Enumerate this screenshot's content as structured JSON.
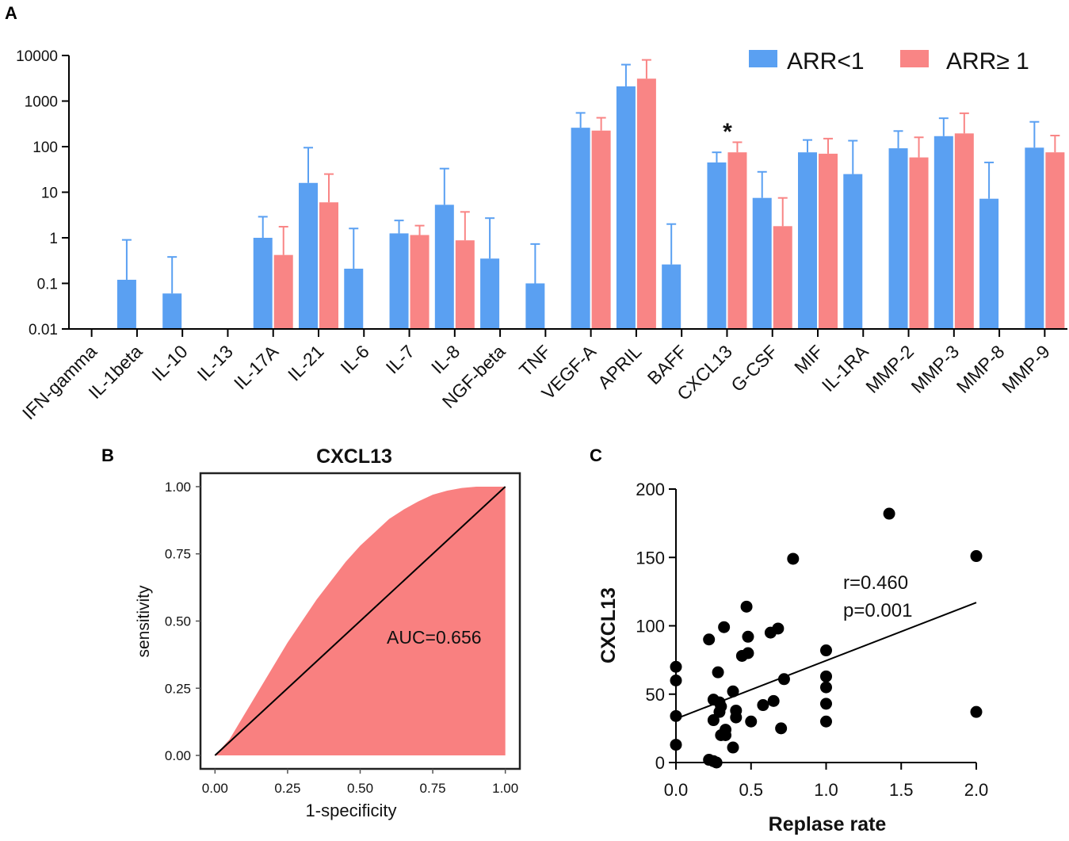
{
  "chart_data": [
    {
      "id": "A",
      "panel_label": "A",
      "type": "bar",
      "yscale": "log",
      "ylim": [
        0.01,
        10000
      ],
      "ytick_values": [
        0.01,
        0.1,
        1,
        10,
        100,
        1000,
        10000
      ],
      "ytick_labels": [
        "0.01",
        "0.1",
        "1",
        "10",
        "100",
        "1000",
        "10000"
      ],
      "categories": [
        "IFN-gamma",
        "IL-1beta",
        "IL-10",
        "IL-13",
        "IL-17A",
        "IL-21",
        "IL-6",
        "IL-7",
        "IL-8",
        "NGF-beta",
        "TNF",
        "VEGF-A",
        "APRIL",
        "BAFF",
        "CXCL13",
        "G-CSF",
        "MIF",
        "IL-1RA",
        "MMP-2",
        "MMP-3",
        "MMP-8",
        "MMP-9"
      ],
      "series": [
        {
          "name": "ARR<1",
          "color": "#5aa0f2",
          "values": [
            null,
            0.12,
            0.06,
            null,
            1.0,
            16,
            0.21,
            1.25,
            5.3,
            0.35,
            0.1,
            260,
            2100,
            0.26,
            45,
            7.5,
            75,
            25,
            92,
            170,
            7.2,
            95
          ],
          "error_upper": [
            null,
            0.9,
            0.38,
            null,
            2.9,
            95,
            1.6,
            2.4,
            33,
            2.7,
            0.73,
            550,
            6300,
            2.0,
            75,
            28,
            140,
            135,
            220,
            420,
            45,
            350
          ]
        },
        {
          "name": "ARR≥ 1",
          "color": "#f98585",
          "values": [
            null,
            null,
            null,
            null,
            0.42,
            6.0,
            null,
            1.15,
            0.88,
            null,
            null,
            225,
            3100,
            null,
            75,
            1.8,
            70,
            null,
            58,
            195,
            null,
            75
          ],
          "error_upper": [
            null,
            null,
            null,
            null,
            1.75,
            25,
            null,
            1.85,
            3.7,
            null,
            null,
            430,
            8000,
            null,
            125,
            7.5,
            150,
            null,
            160,
            540,
            null,
            175
          ]
        }
      ],
      "annotations": [
        {
          "text": "*",
          "category": "CXCL13"
        }
      ]
    },
    {
      "id": "B",
      "panel_label": "B",
      "type": "area",
      "title": "CXCL13",
      "xlabel": "1-specificity",
      "ylabel": "sensitivity",
      "xlim": [
        -0.05,
        1.05
      ],
      "ylim": [
        -0.05,
        1.05
      ],
      "xticks": [
        "0.00",
        "0.25",
        "0.50",
        "0.75",
        "1.00"
      ],
      "yticks": [
        "0.00",
        "0.25",
        "0.50",
        "0.75",
        "1.00"
      ],
      "roc_curve": {
        "x": [
          0.0,
          0.05,
          0.1,
          0.15,
          0.2,
          0.25,
          0.3,
          0.35,
          0.4,
          0.45,
          0.5,
          0.55,
          0.6,
          0.65,
          0.7,
          0.75,
          0.8,
          0.85,
          0.9,
          0.95,
          1.0
        ],
        "y": [
          0.0,
          0.06,
          0.15,
          0.24,
          0.33,
          0.42,
          0.5,
          0.58,
          0.65,
          0.72,
          0.78,
          0.83,
          0.88,
          0.915,
          0.945,
          0.97,
          0.985,
          0.995,
          1.0,
          1.0,
          1.0
        ]
      },
      "diagonal": {
        "x": [
          0,
          1
        ],
        "y": [
          0,
          1
        ]
      },
      "annotation": "AUC=0.656",
      "fill_color": "#f98080"
    },
    {
      "id": "C",
      "panel_label": "C",
      "type": "scatter",
      "xlabel": "Replase rate",
      "ylabel": "CXCL13",
      "xlim": [
        0,
        2.0
      ],
      "ylim": [
        0,
        200
      ],
      "xticks": [
        "0.0",
        "0.5",
        "1.0",
        "1.5",
        "2.0"
      ],
      "yticks": [
        "0",
        "50",
        "100",
        "150",
        "200"
      ],
      "points": [
        [
          0,
          70
        ],
        [
          0,
          60
        ],
        [
          0,
          34
        ],
        [
          0,
          13
        ],
        [
          0.22,
          90
        ],
        [
          0.22,
          2
        ],
        [
          0.25,
          1
        ],
        [
          0.25,
          46
        ],
        [
          0.25,
          31
        ],
        [
          0.27,
          0
        ],
        [
          0.28,
          66
        ],
        [
          0.29,
          44
        ],
        [
          0.29,
          37
        ],
        [
          0.3,
          41
        ],
        [
          0.3,
          20
        ],
        [
          0.32,
          99
        ],
        [
          0.33,
          24
        ],
        [
          0.33,
          20
        ],
        [
          0.38,
          11
        ],
        [
          0.38,
          52
        ],
        [
          0.4,
          38
        ],
        [
          0.4,
          33
        ],
        [
          0.44,
          78
        ],
        [
          0.47,
          114
        ],
        [
          0.48,
          80
        ],
        [
          0.48,
          92
        ],
        [
          0.5,
          30
        ],
        [
          0.58,
          42
        ],
        [
          0.63,
          95
        ],
        [
          0.65,
          45
        ],
        [
          0.68,
          98
        ],
        [
          0.7,
          25
        ],
        [
          0.72,
          61
        ],
        [
          0.78,
          149
        ],
        [
          1.0,
          82
        ],
        [
          1.0,
          63
        ],
        [
          1.0,
          55
        ],
        [
          1.0,
          43
        ],
        [
          1.0,
          30
        ],
        [
          1.42,
          182
        ],
        [
          2.0,
          151
        ],
        [
          2.0,
          37
        ]
      ],
      "regression": {
        "x": [
          0,
          2.0
        ],
        "y": [
          32,
          117
        ]
      },
      "annotations": [
        "r=0.460",
        "p=0.001"
      ]
    }
  ],
  "colors": {
    "blue": "#5aa0f2",
    "red": "#f98585",
    "axis": "#000000"
  }
}
